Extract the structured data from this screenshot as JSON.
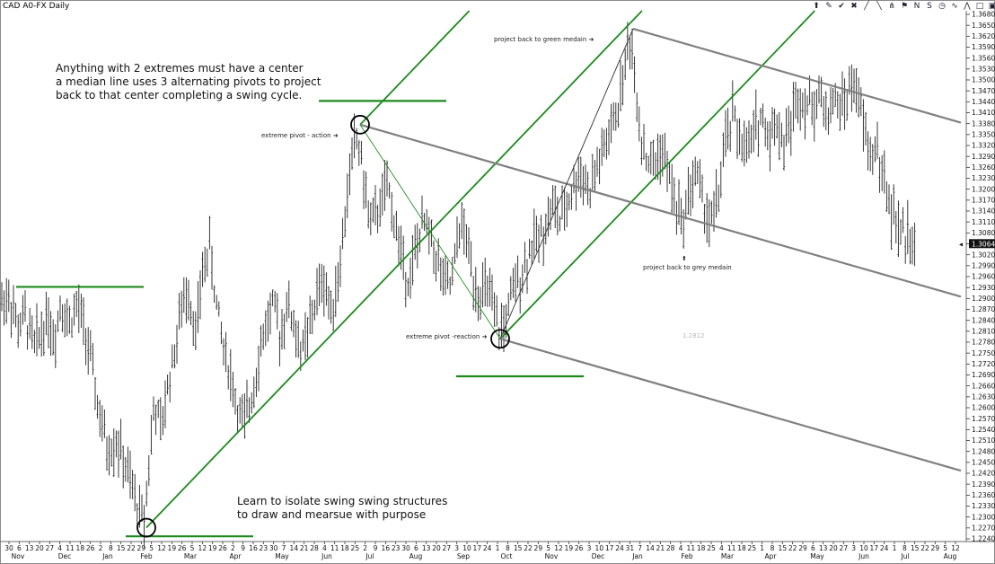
{
  "window": {
    "title": "CAD A0-FX Daily"
  },
  "toolbar": {
    "icons": [
      "arrow-up-icon",
      "pencil-icon",
      "wrench-icon",
      "lock-icon",
      "line-icon",
      "channel-icon",
      "pitchfork-icon",
      "flag-icon",
      "text-N-icon",
      "text-S-icon",
      "clock-icon",
      "wave-icon",
      "zigzag-icon",
      "rect-icon",
      "more-icon"
    ],
    "glyphs": [
      "⬆",
      "✎",
      "✔",
      "✖",
      "╱",
      "╲",
      "⋔",
      "⚑",
      "N",
      "S",
      "◷",
      "∿",
      "⋀",
      "□",
      "▣"
    ]
  },
  "annotations": {
    "main_note": "Anything with 2 extremes must have a center\na median line uses 3 alternating pivots to project\nback to that center completing a swing cycle.",
    "bottom_note": "Learn to isolate swing swing structures\nto draw and mearsue with purpose",
    "action_label": "extreme pivot - action ➜",
    "reaction_label": "extreme pivot -reaction ➜",
    "green_label": "project back to green medain ➜",
    "grey_arrow": "⬆",
    "grey_label": "project back to grey medain",
    "ghost_label": "1.2812"
  },
  "chart_data": {
    "type": "ohlc-bar",
    "symbol": "CAD A0-FX",
    "interval": "Daily",
    "last_price": "1.3064",
    "ylim": [
      1.224,
      1.371
    ],
    "yticks": [
      "1.3680",
      "1.3650",
      "1.3620",
      "1.3590",
      "1.3560",
      "1.3530",
      "1.3500",
      "1.3470",
      "1.3440",
      "1.3410",
      "1.3380",
      "1.3350",
      "1.3320",
      "1.3290",
      "1.3260",
      "1.3230",
      "1.3200",
      "1.3170",
      "1.3140",
      "1.3110",
      "1.3080",
      "1.3050",
      "1.3020",
      "1.2990",
      "1.2960",
      "1.2930",
      "1.2900",
      "1.2870",
      "1.2840",
      "1.2810",
      "1.2780",
      "1.2750",
      "1.2720",
      "1.2690",
      "1.2660",
      "1.2630",
      "1.2600",
      "1.2570",
      "1.2540",
      "1.2510",
      "1.2480",
      "1.2450",
      "1.2420",
      "1.2390",
      "1.2360",
      "1.2330",
      "1.2300",
      "1.2270",
      "1.2240"
    ],
    "xticks": [
      "30",
      "6",
      "13",
      "20",
      "27",
      "4",
      "11",
      "18",
      "26",
      "2",
      "8",
      "15",
      "22",
      "29",
      "5",
      "12",
      "19",
      "26",
      "5",
      "12",
      "19",
      "26",
      "2",
      "9",
      "16",
      "23",
      "30",
      "7",
      "14",
      "21",
      "28",
      "4",
      "11",
      "18",
      "25",
      "2",
      "9",
      "16",
      "23",
      "30",
      "6",
      "13",
      "20",
      "27",
      "3",
      "10",
      "17",
      "24",
      "1",
      "8",
      "15",
      "22",
      "29",
      "5",
      "12",
      "19",
      "26",
      "3",
      "10",
      "17",
      "24",
      "31",
      "7",
      "14",
      "21",
      "28",
      "4",
      "11",
      "18",
      "25",
      "4",
      "11",
      "18",
      "25",
      "1",
      "8",
      "15",
      "22",
      "29",
      "6",
      "13",
      "20",
      "27",
      "3",
      "10",
      "17",
      "24",
      "1",
      "8",
      "15",
      "22",
      "29",
      "5",
      "12"
    ],
    "months": [
      "Nov",
      "Dec",
      "Jan",
      "Feb",
      "Mar",
      "Apr",
      "May",
      "Jun",
      "Jul",
      "Aug",
      "Sep",
      "Oct",
      "Nov",
      "Dec",
      "Jan",
      "Feb",
      "Mar",
      "Apr",
      "May",
      "Jun",
      "Jul",
      "Aug"
    ],
    "price_path": [
      [
        0,
        1.29
      ],
      [
        10,
        1.292
      ],
      [
        20,
        1.283
      ],
      [
        28,
        1.286
      ],
      [
        38,
        1.278
      ],
      [
        46,
        1.282
      ],
      [
        54,
        1.287
      ],
      [
        60,
        1.279
      ],
      [
        68,
        1.291
      ],
      [
        76,
        1.284
      ],
      [
        86,
        1.289
      ],
      [
        94,
        1.283
      ],
      [
        100,
        1.275
      ],
      [
        106,
        1.266
      ],
      [
        112,
        1.257
      ],
      [
        120,
        1.249
      ],
      [
        130,
        1.252
      ],
      [
        140,
        1.244
      ],
      [
        150,
        1.236
      ],
      [
        160,
        1.229
      ],
      [
        166,
        1.246
      ],
      [
        172,
        1.262
      ],
      [
        180,
        1.254
      ],
      [
        186,
        1.266
      ],
      [
        194,
        1.276
      ],
      [
        202,
        1.288
      ],
      [
        210,
        1.294
      ],
      [
        218,
        1.281
      ],
      [
        226,
        1.299
      ],
      [
        234,
        1.306
      ],
      [
        240,
        1.291
      ],
      [
        248,
        1.279
      ],
      [
        256,
        1.271
      ],
      [
        264,
        1.261
      ],
      [
        272,
        1.256
      ],
      [
        280,
        1.264
      ],
      [
        288,
        1.275
      ],
      [
        296,
        1.284
      ],
      [
        304,
        1.289
      ],
      [
        312,
        1.281
      ],
      [
        320,
        1.29
      ],
      [
        328,
        1.283
      ],
      [
        336,
        1.276
      ],
      [
        344,
        1.282
      ],
      [
        352,
        1.291
      ],
      [
        360,
        1.297
      ],
      [
        368,
        1.288
      ],
      [
        376,
        1.296
      ],
      [
        384,
        1.312
      ],
      [
        390,
        1.328
      ],
      [
        396,
        1.336
      ],
      [
        402,
        1.331
      ],
      [
        408,
        1.317
      ],
      [
        416,
        1.312
      ],
      [
        424,
        1.318
      ],
      [
        432,
        1.322
      ],
      [
        440,
        1.312
      ],
      [
        448,
        1.302
      ],
      [
        456,
        1.296
      ],
      [
        464,
        1.306
      ],
      [
        472,
        1.312
      ],
      [
        480,
        1.308
      ],
      [
        488,
        1.301
      ],
      [
        496,
        1.294
      ],
      [
        504,
        1.296
      ],
      [
        512,
        1.312
      ],
      [
        520,
        1.307
      ],
      [
        528,
        1.296
      ],
      [
        536,
        1.292
      ],
      [
        544,
        1.294
      ],
      [
        550,
        1.286
      ],
      [
        556,
        1.282
      ],
      [
        562,
        1.284
      ],
      [
        568,
        1.29
      ],
      [
        576,
        1.296
      ],
      [
        584,
        1.3
      ],
      [
        592,
        1.306
      ],
      [
        600,
        1.308
      ],
      [
        608,
        1.312
      ],
      [
        616,
        1.317
      ],
      [
        624,
        1.312
      ],
      [
        632,
        1.318
      ],
      [
        640,
        1.323
      ],
      [
        648,
        1.327
      ],
      [
        656,
        1.32
      ],
      [
        664,
        1.327
      ],
      [
        672,
        1.332
      ],
      [
        680,
        1.337
      ],
      [
        688,
        1.344
      ],
      [
        696,
        1.356
      ],
      [
        702,
        1.364
      ],
      [
        708,
        1.35
      ],
      [
        714,
        1.336
      ],
      [
        720,
        1.33
      ],
      [
        728,
        1.328
      ],
      [
        736,
        1.333
      ],
      [
        744,
        1.326
      ],
      [
        752,
        1.318
      ],
      [
        760,
        1.312
      ],
      [
        768,
        1.322
      ],
      [
        776,
        1.326
      ],
      [
        784,
        1.317
      ],
      [
        792,
        1.312
      ],
      [
        800,
        1.32
      ],
      [
        808,
        1.334
      ],
      [
        816,
        1.342
      ],
      [
        824,
        1.336
      ],
      [
        832,
        1.331
      ],
      [
        840,
        1.338
      ],
      [
        848,
        1.342
      ],
      [
        856,
        1.336
      ],
      [
        864,
        1.341
      ],
      [
        872,
        1.334
      ],
      [
        880,
        1.339
      ],
      [
        888,
        1.348
      ],
      [
        896,
        1.346
      ],
      [
        904,
        1.344
      ],
      [
        912,
        1.348
      ],
      [
        920,
        1.342
      ],
      [
        928,
        1.346
      ],
      [
        936,
        1.344
      ],
      [
        944,
        1.348
      ],
      [
        952,
        1.351
      ],
      [
        958,
        1.344
      ],
      [
        964,
        1.336
      ],
      [
        970,
        1.33
      ],
      [
        976,
        1.334
      ],
      [
        982,
        1.326
      ],
      [
        988,
        1.32
      ],
      [
        994,
        1.314
      ],
      [
        1000,
        1.311
      ],
      [
        1008,
        1.308
      ],
      [
        1014,
        1.31
      ],
      [
        1020,
        1.306
      ]
    ],
    "horizontal_lines": [
      {
        "x1": 18,
        "x2": 160,
        "y": 1.2944,
        "color": "green"
      },
      {
        "x1": 355,
        "x2": 497,
        "y": 1.346,
        "color": "green"
      },
      {
        "x1": 508,
        "x2": 650,
        "y": 1.2696,
        "color": "green"
      },
      {
        "x1": 140,
        "x2": 282,
        "y": 1.2252,
        "color": "green"
      }
    ],
    "median_lines": [
      {
        "name": "green",
        "color": "green",
        "pivots": [
          {
            "x": 163,
            "y": 1.2276
          },
          {
            "x": 401,
            "y": 1.3394
          },
          {
            "x": 557,
            "y": 1.28
          }
        ],
        "handles": [
          [
            325,
            1.388
          ],
          [
            711,
            1.368
          ]
        ]
      },
      {
        "name": "grey",
        "color": "grey",
        "pivots": [
          {
            "x": 401,
            "y": 1.3394
          },
          {
            "x": 557,
            "y": 1.28
          },
          {
            "x": 705,
            "y": 1.366
          }
        ],
        "handles": [
          [
            1070,
            1.3422
          ],
          [
            1070,
            1.245
          ]
        ]
      }
    ],
    "pivot_circles": [
      {
        "x": 163,
        "y": 1.2276
      },
      {
        "x": 401,
        "y": 1.3394
      },
      {
        "x": 557,
        "y": 1.28
      }
    ]
  }
}
